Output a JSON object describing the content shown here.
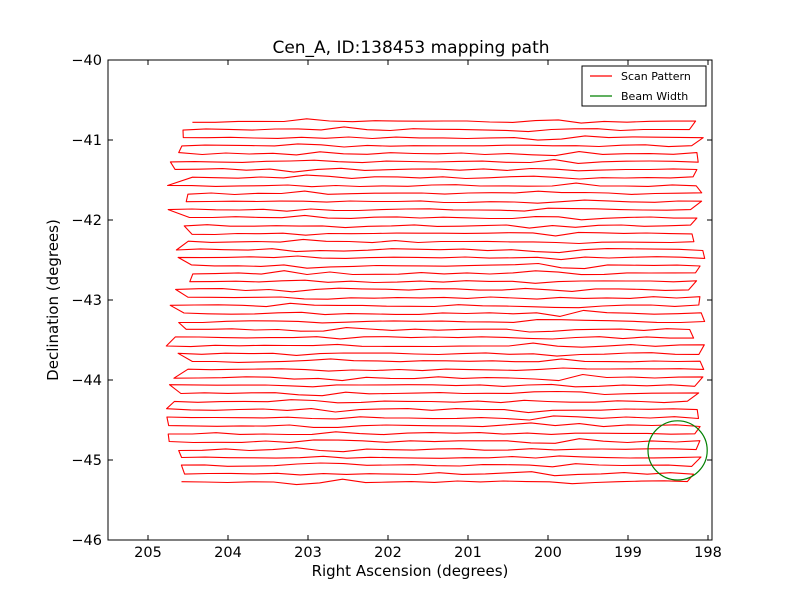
{
  "chart_data": {
    "type": "line",
    "title": "Cen_A, ID:138453 mapping path",
    "xlabel": "Right Ascension (degrees)",
    "ylabel": "Declination (degrees)",
    "xlim": [
      205.5,
      197.95
    ],
    "ylim": [
      -46,
      -40
    ],
    "xticks": [
      "205",
      "204",
      "203",
      "202",
      "201",
      "200",
      "199",
      "198"
    ],
    "xtick_values": [
      205,
      204,
      203,
      202,
      201,
      200,
      199,
      198
    ],
    "yticks": [
      "−40",
      "−41",
      "−42",
      "−43",
      "−44",
      "−45",
      "−46"
    ],
    "ytick_values": [
      -40,
      -41,
      -42,
      -43,
      -44,
      -45,
      -46
    ],
    "grid": false,
    "legend_position": "top-right",
    "series": [
      {
        "name": "Scan Pattern",
        "color": "#ff0000",
        "scan_rows": {
          "ra_start_mean": 204.6,
          "ra_end_mean": 198.15,
          "dec_first": -40.77,
          "dec_last": -45.27,
          "row_count": 46
        }
      },
      {
        "name": "Beam Width",
        "color": "#008000",
        "shape": "circle",
        "center": [
          198.38,
          -44.88
        ],
        "radius_deg": 0.37
      }
    ]
  }
}
